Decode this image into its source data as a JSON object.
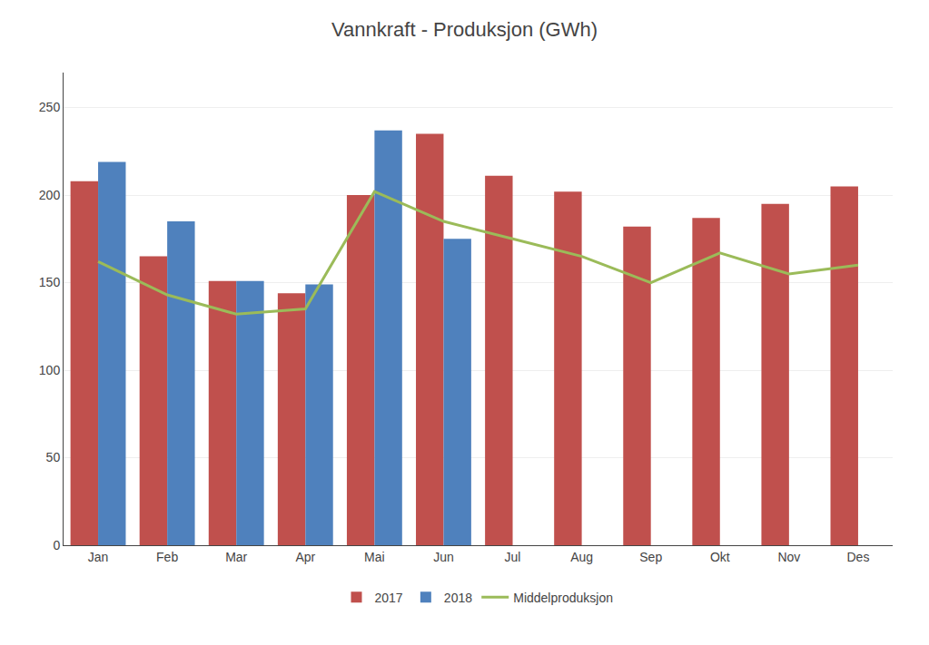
{
  "chart_data": {
    "type": "bar",
    "title": "Vannkraft - Produksjon (GWh)",
    "categories": [
      "Jan",
      "Feb",
      "Mar",
      "Apr",
      "Mai",
      "Jun",
      "Jul",
      "Aug",
      "Sep",
      "Okt",
      "Nov",
      "Des"
    ],
    "series": [
      {
        "name": "2017",
        "type": "bar",
        "color": "#c0504d",
        "values": [
          208,
          165,
          151,
          144,
          200,
          235,
          211,
          202,
          182,
          187,
          195,
          205
        ]
      },
      {
        "name": "2018",
        "type": "bar",
        "color": "#4f81bd",
        "values": [
          219,
          185,
          151,
          149,
          237,
          175,
          null,
          null,
          null,
          null,
          null,
          null
        ]
      },
      {
        "name": "Middelproduksjon",
        "type": "line",
        "color": "#9bbb59",
        "values": [
          162,
          143,
          132,
          135,
          202,
          185,
          175,
          165,
          150,
          167,
          155,
          160
        ]
      }
    ],
    "ylim": [
      0,
      270
    ],
    "yticks": [
      0,
      50,
      100,
      150,
      200,
      250
    ],
    "grid": true,
    "legend": "bottom"
  }
}
